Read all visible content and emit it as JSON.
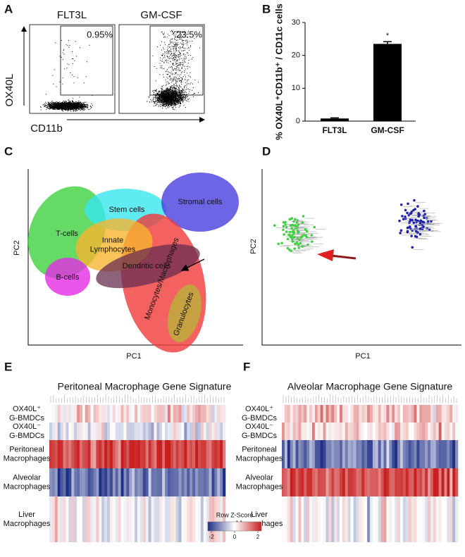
{
  "panel_labels": [
    "A",
    "B",
    "C",
    "D",
    "E",
    "F"
  ],
  "panel_a": {
    "plots": [
      {
        "title": "FLT3L",
        "gate_label": "0.95%"
      },
      {
        "title": "GM-CSF",
        "gate_label": "23.5%"
      }
    ],
    "y_label": "OX40L",
    "x_label": "CD11b"
  },
  "chart_data": {
    "type": "bar",
    "y_label": "% OX40L⁺CD11b⁺ / CD11c cells",
    "categories": [
      "FLT3L",
      "GM-CSF"
    ],
    "values": [
      0.8,
      23.5
    ],
    "errors": [
      0.2,
      0.7
    ],
    "annotation": "*",
    "color": "#000000",
    "ylim": [
      0,
      30
    ],
    "yticks": [
      0,
      10,
      20,
      30
    ]
  },
  "panel_c": {
    "clusters": [
      [
        "T-cells"
      ],
      [
        "Stem cells"
      ],
      [
        "Stromal cells"
      ],
      [
        "Innate",
        "Lymphocytes"
      ],
      [
        "B-cells"
      ],
      [
        "Monocytes/Macrophages"
      ],
      [
        "Dendritic cells"
      ],
      [
        "Granulocytes"
      ]
    ],
    "x_label": "PC1",
    "y_label": "PC2"
  },
  "panel_d": {
    "x_label": "PC1",
    "y_label": "PC2"
  },
  "heatmaps": [
    {
      "title": "Peritoneal Macrophage Gene Signature",
      "rows": [
        [
          "OX40L⁺",
          "G-BMDCs"
        ],
        [
          "OX40L⁻",
          "G-BMDCs"
        ],
        [
          "Peritoneal",
          "Macrophages"
        ],
        [
          "Alveolar",
          "Macrophages"
        ],
        [
          "Liver",
          "Macrophages"
        ]
      ]
    },
    {
      "title": "Alveolar Macrophage Gene Signature",
      "rows": [
        [
          "OX40L⁺",
          "G-BMDCs"
        ],
        [
          "OX40L⁻",
          "G-BMDCs"
        ],
        [
          "Peritoneal",
          "Macrophages"
        ],
        [
          "Alveolar",
          "Macrophages"
        ],
        [
          "Liver",
          "Macrophages"
        ]
      ]
    }
  ],
  "color_key": {
    "title": "Row Z-Score",
    "ticks": [
      -2,
      0,
      2
    ],
    "lim": [
      -2,
      2
    ]
  }
}
